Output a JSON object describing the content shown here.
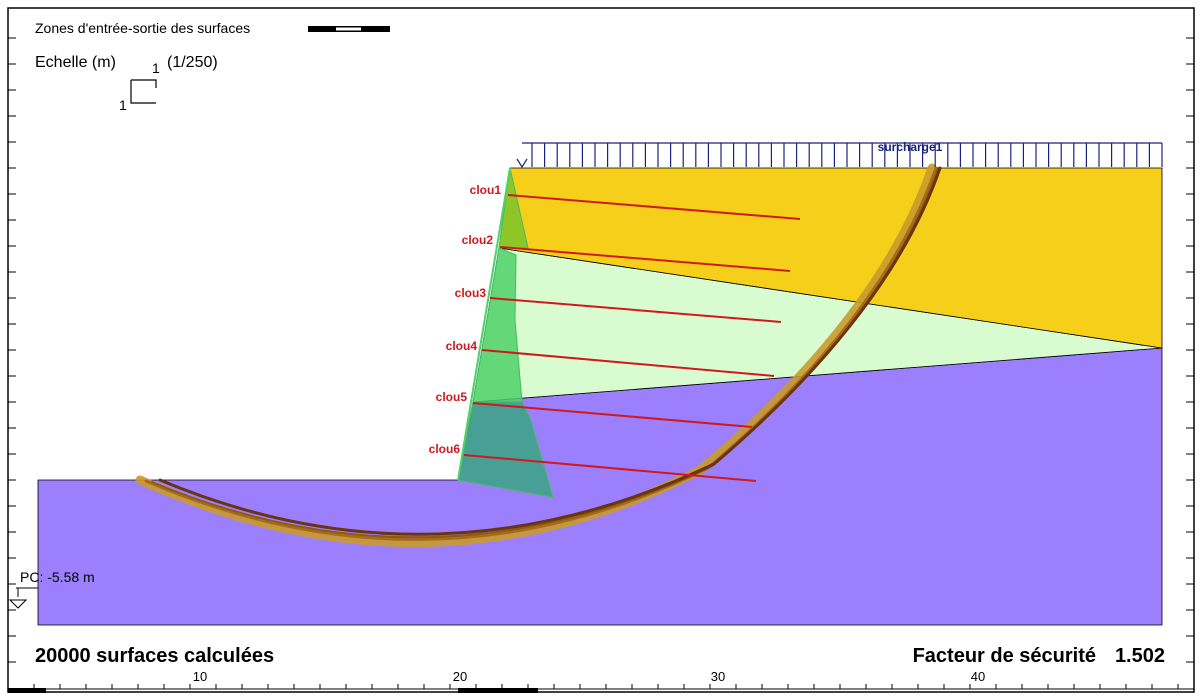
{
  "header": {
    "zones_label": "Zones d'entrée-sortie des surfaces",
    "scale_title": "Echelle (m)",
    "scale_ratio": "(1/250)",
    "scale_h": "1",
    "scale_v": "1"
  },
  "load": {
    "label": "surcharge1"
  },
  "nails": [
    {
      "label": "clou1"
    },
    {
      "label": "clou2"
    },
    {
      "label": "clou3"
    },
    {
      "label": "clou4"
    },
    {
      "label": "clou5"
    },
    {
      "label": "clou6"
    }
  ],
  "pc_label": "PC: -5.58 m",
  "footer": {
    "surfaces_count": "20000 surfaces calculées",
    "safety_label": "Facteur de sécurité",
    "safety_value": "1.502"
  },
  "axis": {
    "ticks": [
      "10",
      "20",
      "30",
      "40"
    ]
  },
  "colors": {
    "upper_soil": "#f6cf1a",
    "wedge_soil": "#d9fbd0",
    "lower_soil": "#9b7ffd",
    "facing": "#4fd06b",
    "nail": "#d0191c",
    "load": "#1a237e",
    "slip_surface": "#6b3410"
  }
}
